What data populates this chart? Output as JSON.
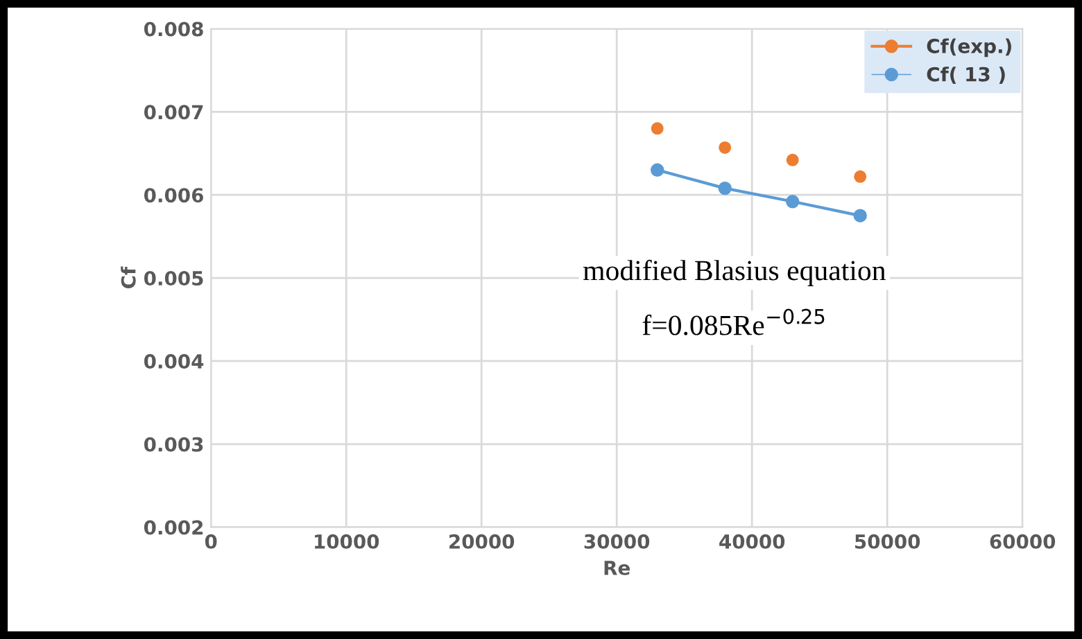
{
  "chart_data": {
    "type": "line",
    "xlabel": "Re",
    "ylabel": "Cf",
    "x": [
      33000,
      38000,
      43000,
      48000
    ],
    "series": [
      {
        "name": "Cf(exp.)",
        "type": "scatter",
        "color": "#ed7d31",
        "values": [
          0.0068,
          0.00657,
          0.00642,
          0.00622
        ]
      },
      {
        "name": "Cf( 13 )",
        "color": "#5b9bd5",
        "values": [
          0.0063,
          0.00608,
          0.00592,
          0.00575
        ]
      }
    ],
    "xlim": [
      0,
      60000
    ],
    "xticks": [
      0,
      10000,
      20000,
      30000,
      40000,
      50000,
      60000
    ],
    "ylim": [
      0.002,
      0.008
    ],
    "yticks": [
      0.002,
      0.003,
      0.004,
      0.005,
      0.006,
      0.007,
      0.008
    ],
    "grid": true,
    "legend": "top right",
    "marker": "circle",
    "annotations": [
      "modified Blasius equation",
      "f=0.085Re$^{−0.25}$"
    ]
  }
}
